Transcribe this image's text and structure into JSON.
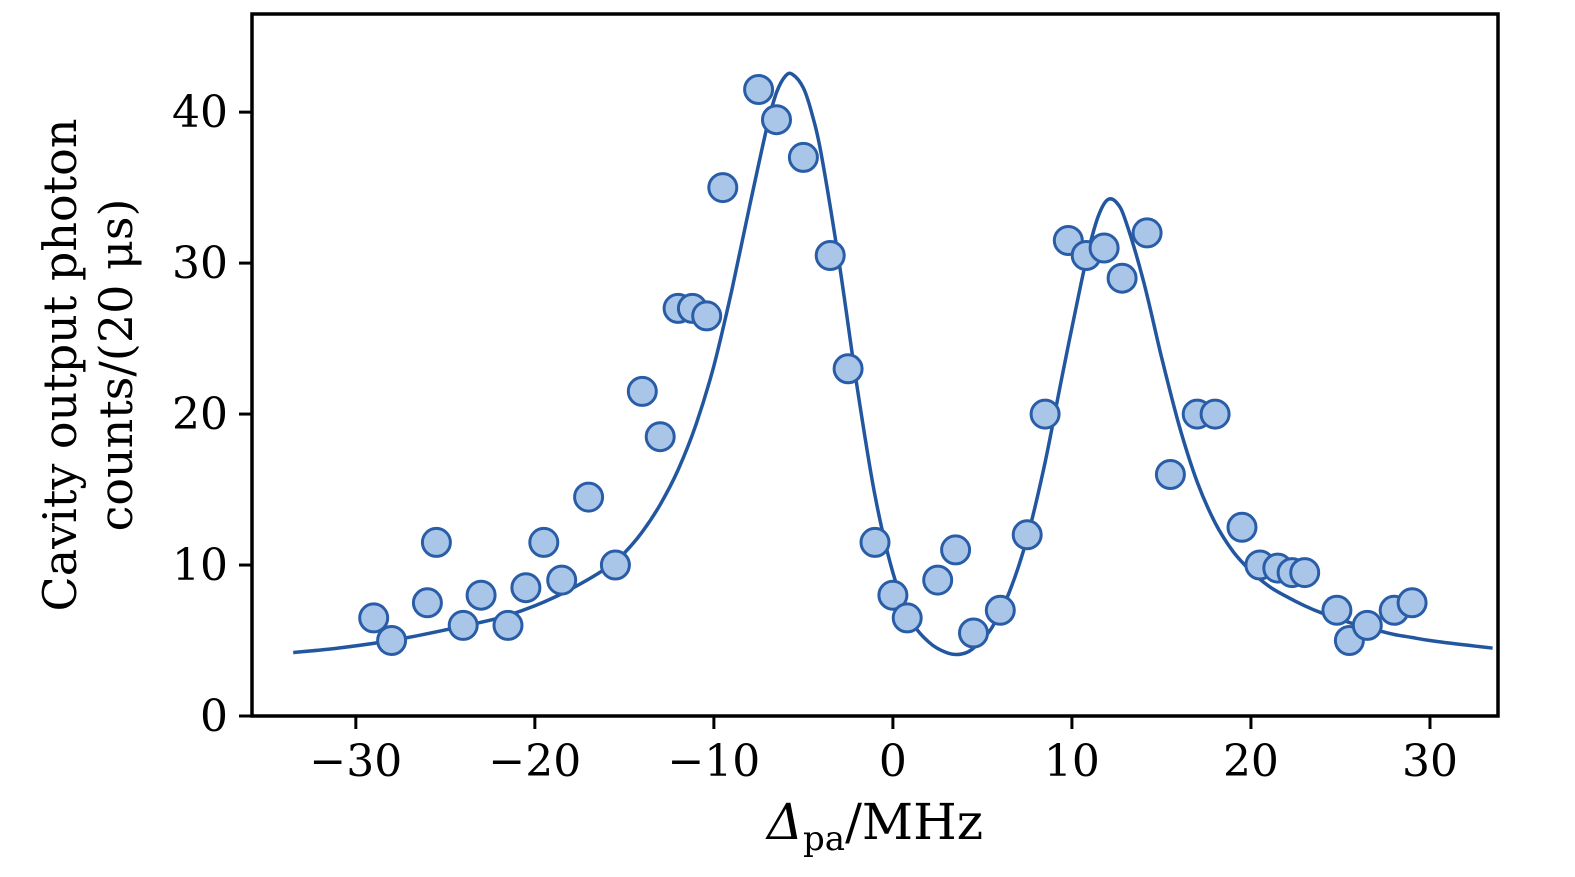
{
  "chart_data": {
    "type": "scatter",
    "title": "",
    "xlabel": {
      "symbol": "Δ",
      "subscript": "pa",
      "suffix": "/MHz"
    },
    "ylabel_line1": "Cavity output photon",
    "ylabel_line2": "counts/(20 μs)",
    "xlim": [
      -35.8,
      33.8
    ],
    "ylim": [
      0,
      46.5
    ],
    "grid": false,
    "legend": null,
    "xticks": [
      {
        "v": -30,
        "label": "−30"
      },
      {
        "v": -20,
        "label": "−20"
      },
      {
        "v": -10,
        "label": "−10"
      },
      {
        "v": 0,
        "label": "0"
      },
      {
        "v": 10,
        "label": "10"
      },
      {
        "v": 20,
        "label": "20"
      },
      {
        "v": 30,
        "label": "30"
      }
    ],
    "yticks": [
      {
        "v": 0,
        "label": "0"
      },
      {
        "v": 10,
        "label": "10"
      },
      {
        "v": 20,
        "label": "20"
      },
      {
        "v": 30,
        "label": "30"
      },
      {
        "v": 40,
        "label": "40"
      }
    ],
    "colors": {
      "marker_fill": "#a9c6e8",
      "marker_edge": "#2a5da8",
      "fit_line": "#2257a0",
      "axis": "#000000"
    },
    "marker_radius_px": 14,
    "scatter_points": [
      [
        -29,
        6.5
      ],
      [
        -28,
        5.0
      ],
      [
        -26,
        7.5
      ],
      [
        -25.5,
        11.5
      ],
      [
        -24,
        6.0
      ],
      [
        -23,
        8.0
      ],
      [
        -21.5,
        6.0
      ],
      [
        -20.5,
        8.5
      ],
      [
        -19.5,
        11.5
      ],
      [
        -18.5,
        9.0
      ],
      [
        -17,
        14.5
      ],
      [
        -15.5,
        10.0
      ],
      [
        -14,
        21.5
      ],
      [
        -13,
        18.5
      ],
      [
        -12,
        27.0
      ],
      [
        -11.2,
        27.0
      ],
      [
        -10.4,
        26.5
      ],
      [
        -9.5,
        35.0
      ],
      [
        -7.5,
        41.5
      ],
      [
        -6.5,
        39.5
      ],
      [
        -5,
        37.0
      ],
      [
        -3.5,
        30.5
      ],
      [
        -2.5,
        23.0
      ],
      [
        -1,
        11.5
      ],
      [
        0,
        8.0
      ],
      [
        0.8,
        6.5
      ],
      [
        2.5,
        9.0
      ],
      [
        3.5,
        11.0
      ],
      [
        4.5,
        5.5
      ],
      [
        6,
        7.0
      ],
      [
        7.5,
        12.0
      ],
      [
        8.5,
        20.0
      ],
      [
        9.8,
        31.5
      ],
      [
        10.8,
        30.5
      ],
      [
        11.8,
        31.0
      ],
      [
        12.8,
        29.0
      ],
      [
        14.2,
        32.0
      ],
      [
        15.5,
        16.0
      ],
      [
        17,
        20.0
      ],
      [
        18,
        20.0
      ],
      [
        19.5,
        12.5
      ],
      [
        20.5,
        10.0
      ],
      [
        21.5,
        9.8
      ],
      [
        22.3,
        9.5
      ],
      [
        23,
        9.5
      ],
      [
        24.8,
        7.0
      ],
      [
        25.5,
        5.0
      ],
      [
        26.5,
        6.0
      ],
      [
        28,
        7.0
      ],
      [
        29,
        7.5
      ]
    ],
    "fit_curve_points": [
      [
        -33.5,
        4.2
      ],
      [
        -31,
        4.5
      ],
      [
        -28,
        5.0
      ],
      [
        -25,
        5.7
      ],
      [
        -22,
        6.5
      ],
      [
        -20,
        7.3
      ],
      [
        -18,
        8.4
      ],
      [
        -16,
        9.8
      ],
      [
        -15,
        10.8
      ],
      [
        -14,
        12.2
      ],
      [
        -13,
        14.0
      ],
      [
        -12,
        16.3
      ],
      [
        -11,
        19.3
      ],
      [
        -10,
        23.2
      ],
      [
        -9,
        28.2
      ],
      [
        -8,
        33.8
      ],
      [
        -7,
        39.2
      ],
      [
        -6.5,
        41.3
      ],
      [
        -6,
        42.4
      ],
      [
        -5.6,
        42.5
      ],
      [
        -5,
        41.6
      ],
      [
        -4.5,
        39.8
      ],
      [
        -4,
        37.2
      ],
      [
        -3,
        30.0
      ],
      [
        -2,
        21.8
      ],
      [
        -1,
        14.6
      ],
      [
        0,
        9.5
      ],
      [
        1,
        6.4
      ],
      [
        2,
        4.9
      ],
      [
        3,
        4.2
      ],
      [
        3.8,
        4.1
      ],
      [
        4.5,
        4.5
      ],
      [
        5.5,
        5.8
      ],
      [
        6.5,
        8.2
      ],
      [
        7.5,
        11.8
      ],
      [
        8.5,
        16.8
      ],
      [
        9.5,
        22.8
      ],
      [
        10.5,
        28.6
      ],
      [
        11,
        31.2
      ],
      [
        11.5,
        33.2
      ],
      [
        12,
        34.2
      ],
      [
        12.5,
        34.0
      ],
      [
        13,
        32.8
      ],
      [
        14,
        28.8
      ],
      [
        15,
        23.8
      ],
      [
        16,
        19.2
      ],
      [
        17,
        15.5
      ],
      [
        18,
        12.8
      ],
      [
        19,
        10.9
      ],
      [
        20,
        9.6
      ],
      [
        21,
        8.6
      ],
      [
        22,
        7.9
      ],
      [
        23,
        7.3
      ],
      [
        24,
        6.8
      ],
      [
        25,
        6.4
      ],
      [
        26,
        6.0
      ],
      [
        27,
        5.7
      ],
      [
        28,
        5.4
      ],
      [
        29,
        5.2
      ],
      [
        30,
        5.0
      ],
      [
        32,
        4.7
      ],
      [
        33.5,
        4.5
      ]
    ]
  }
}
